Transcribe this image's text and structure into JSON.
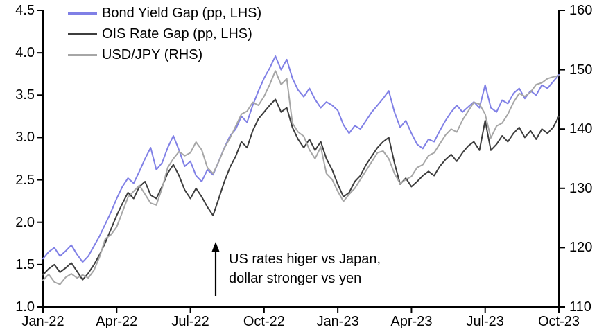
{
  "chart_data": {
    "type": "line",
    "title": "",
    "grid": false,
    "legend_position": "top-left",
    "x_axis": {
      "tick_labels": [
        "Jan-22",
        "Apr-22",
        "Jul-22",
        "Oct-22",
        "Jan-23",
        "Apr-23",
        "Jul-23",
        "Oct-23"
      ],
      "tick_month_positions": [
        0,
        3,
        6,
        9,
        12,
        15,
        18,
        21
      ],
      "total_months": 21
    },
    "y_axis_left": {
      "min": 1.0,
      "max": 4.5,
      "tick_labels": [
        "4.5",
        "4.0",
        "3.5",
        "3.0",
        "2.5",
        "2.0",
        "1.5",
        "1.0"
      ],
      "tick_values": [
        4.5,
        4.0,
        3.5,
        3.0,
        2.5,
        2.0,
        1.5,
        1.0
      ]
    },
    "y_axis_right": {
      "min": 110,
      "max": 160,
      "tick_labels": [
        "160",
        "150",
        "140",
        "130",
        "120",
        "110"
      ],
      "tick_values": [
        160,
        150,
        140,
        130,
        120,
        110
      ]
    },
    "series": [
      {
        "name": "Bond Yield Gap (pp, LHS)",
        "axis": "left",
        "color": "#8080e6",
        "values": [
          1.57,
          1.65,
          1.7,
          1.6,
          1.66,
          1.73,
          1.62,
          1.53,
          1.6,
          1.72,
          1.84,
          1.98,
          2.12,
          2.28,
          2.42,
          2.52,
          2.46,
          2.6,
          2.75,
          2.88,
          2.62,
          2.7,
          2.88,
          3.02,
          2.85,
          2.66,
          2.72,
          2.55,
          2.48,
          2.62,
          2.56,
          2.72,
          2.88,
          3.02,
          3.1,
          3.25,
          3.18,
          3.38,
          3.55,
          3.7,
          3.82,
          3.96,
          3.8,
          3.92,
          3.7,
          3.56,
          3.48,
          3.58,
          3.45,
          3.35,
          3.42,
          3.38,
          3.32,
          3.15,
          3.05,
          3.14,
          3.1,
          3.2,
          3.3,
          3.38,
          3.46,
          3.55,
          3.3,
          3.12,
          3.2,
          3.05,
          2.92,
          2.87,
          2.98,
          2.95,
          3.08,
          3.2,
          3.3,
          3.38,
          3.3,
          3.36,
          3.42,
          3.35,
          3.62,
          3.35,
          3.3,
          3.44,
          3.4,
          3.52,
          3.58,
          3.46,
          3.55,
          3.5,
          3.62,
          3.58,
          3.66,
          3.74
        ]
      },
      {
        "name": "OIS Rate Gap (pp, LHS)",
        "axis": "left",
        "color": "#3d3d3d",
        "values": [
          1.38,
          1.45,
          1.5,
          1.41,
          1.46,
          1.52,
          1.42,
          1.32,
          1.4,
          1.5,
          1.62,
          1.76,
          1.92,
          2.08,
          2.22,
          2.35,
          2.28,
          2.42,
          2.48,
          2.32,
          2.28,
          2.42,
          2.58,
          2.68,
          2.55,
          2.38,
          2.28,
          2.4,
          2.3,
          2.18,
          2.08,
          2.28,
          2.48,
          2.65,
          2.78,
          2.95,
          2.88,
          3.08,
          3.22,
          3.3,
          3.38,
          3.45,
          3.3,
          3.35,
          3.12,
          2.98,
          2.88,
          2.98,
          2.85,
          2.95,
          2.75,
          2.62,
          2.45,
          2.3,
          2.35,
          2.48,
          2.55,
          2.68,
          2.78,
          2.88,
          2.95,
          3.0,
          2.7,
          2.45,
          2.52,
          2.42,
          2.48,
          2.55,
          2.6,
          2.55,
          2.66,
          2.74,
          2.8,
          2.72,
          2.82,
          2.9,
          2.95,
          2.85,
          3.2,
          2.85,
          2.92,
          3.02,
          2.95,
          3.05,
          3.12,
          3.0,
          3.08,
          2.98,
          3.1,
          3.05,
          3.12,
          3.25
        ]
      },
      {
        "name": "USD/JPY (RHS)",
        "axis": "right",
        "color": "#a6a6a6",
        "values": [
          114.5,
          115.5,
          114.2,
          113.8,
          115.0,
          115.6,
          114.9,
          115.4,
          114.9,
          116.2,
          118.5,
          121.5,
          122.2,
          123.5,
          126.0,
          128.5,
          129.5,
          130.5,
          129.0,
          127.5,
          127.2,
          130.0,
          133.5,
          135.0,
          136.2,
          135.5,
          136.0,
          137.8,
          136.5,
          133.5,
          132.5,
          134.5,
          136.8,
          138.5,
          140.5,
          142.5,
          143.0,
          144.5,
          144.0,
          145.5,
          147.5,
          149.8,
          147.5,
          148.5,
          141.0,
          139.5,
          138.8,
          136.5,
          135.0,
          137.0,
          132.5,
          131.5,
          129.5,
          127.8,
          129.0,
          130.0,
          131.5,
          133.0,
          134.5,
          136.0,
          136.3,
          135.0,
          132.5,
          130.8,
          131.5,
          132.0,
          133.5,
          134.0,
          135.5,
          136.0,
          137.5,
          139.0,
          140.0,
          139.5,
          141.5,
          143.0,
          144.5,
          144.2,
          142.5,
          138.5,
          140.5,
          141.0,
          142.5,
          144.5,
          146.0,
          145.5,
          146.2,
          147.5,
          147.8,
          148.5,
          148.8,
          149.0
        ]
      }
    ],
    "annotation": {
      "line1": "US rates higer vs Japan,",
      "line2": "dollar stronger vs yen",
      "arrow_direction": "up"
    },
    "colors": {
      "axis": "#000000",
      "background": "#ffffff"
    }
  }
}
